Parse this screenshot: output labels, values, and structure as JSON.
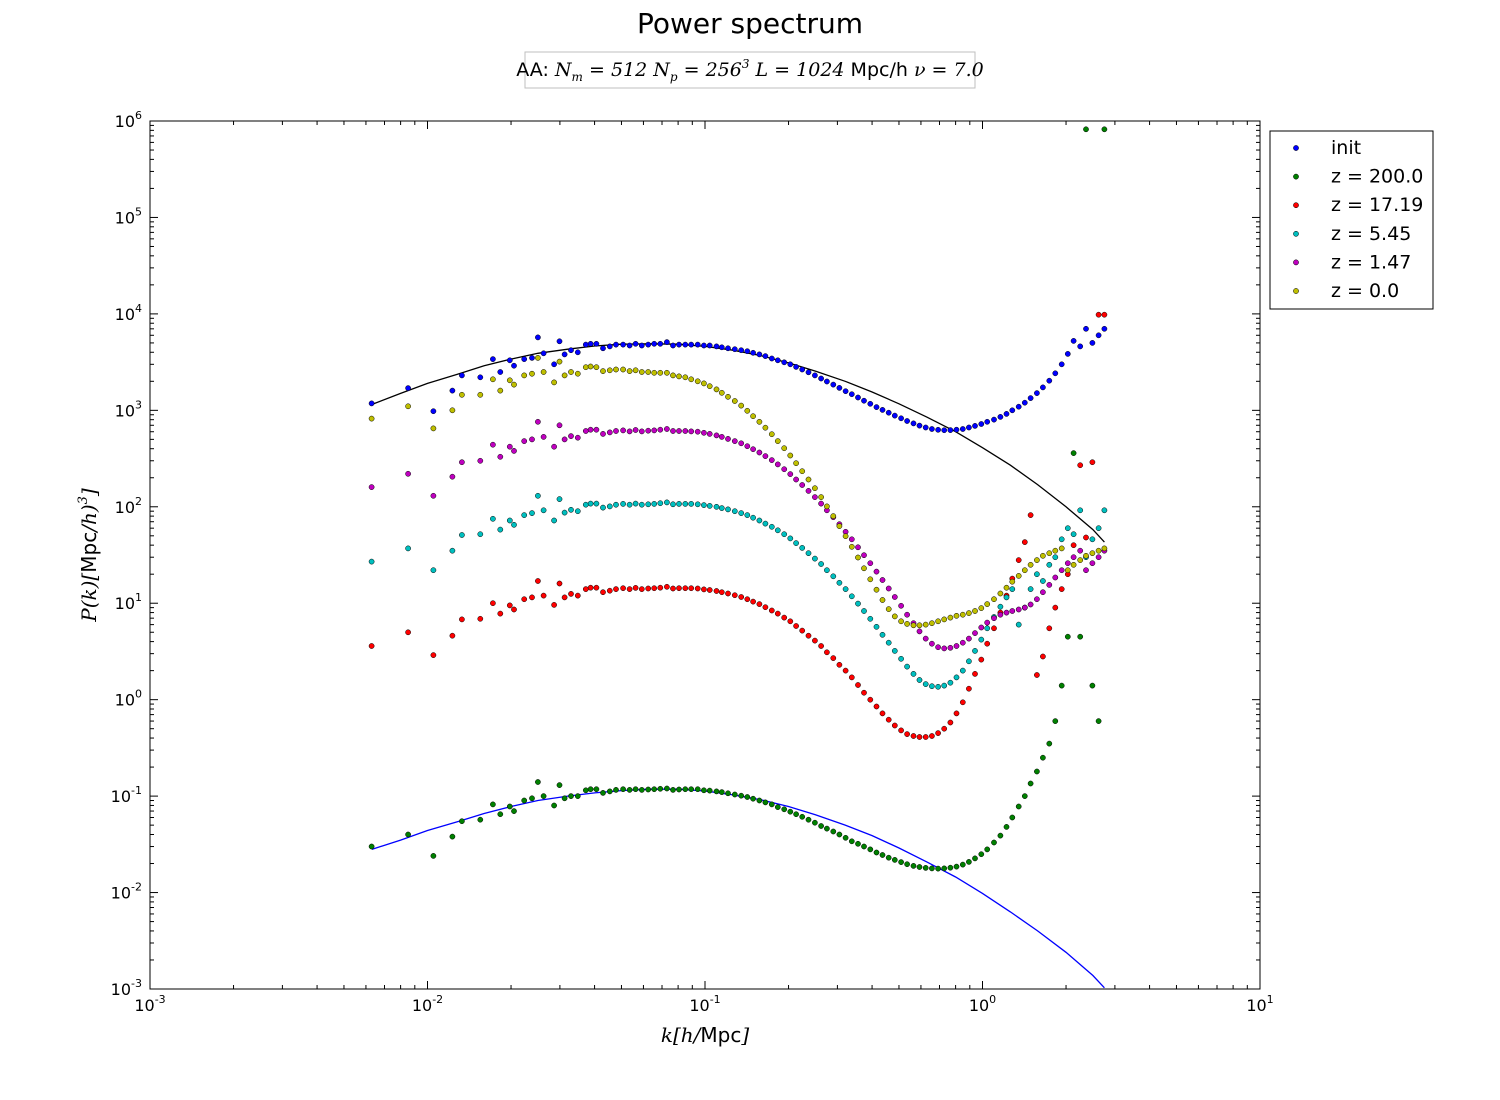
{
  "chart_data": {
    "type": "scatter",
    "title": "Power spectrum",
    "subtitle": {
      "prefix": "AA:",
      "Nm_symbol": "N",
      "Nm_sub": "m",
      "Nm_value": "512",
      "Np_symbol": "N",
      "Np_sub": "p",
      "Np_base": "256",
      "Np_exp": "3",
      "L_symbol": "L",
      "L_value": "1024",
      "L_unit": "Mpc/h",
      "nu_symbol": "ν",
      "nu_value": "7.0"
    },
    "xlabel": {
      "var": "k",
      "open": "[",
      "h": "h",
      "slash": "/",
      "unit": "Mpc",
      "close": "]"
    },
    "ylabel": {
      "var": "P(k)",
      "open": "[",
      "unit": "Mpc",
      "slash": "/",
      "h": "h",
      "close": ")",
      "exp": "3",
      "end": "]"
    },
    "xscale": "log",
    "yscale": "log",
    "xlim": [
      0.001,
      10
    ],
    "ylim": [
      0.001,
      1000000
    ],
    "xticks": [
      {
        "base": "10",
        "exp": "-3"
      },
      {
        "base": "10",
        "exp": "-2"
      },
      {
        "base": "10",
        "exp": "-1"
      },
      {
        "base": "10",
        "exp": "0"
      },
      {
        "base": "10",
        "exp": "1"
      }
    ],
    "yticks": [
      {
        "base": "10",
        "exp": "-3"
      },
      {
        "base": "10",
        "exp": "-2"
      },
      {
        "base": "10",
        "exp": "-1"
      },
      {
        "base": "10",
        "exp": "0"
      },
      {
        "base": "10",
        "exp": "1"
      },
      {
        "base": "10",
        "exp": "2"
      },
      {
        "base": "10",
        "exp": "3"
      },
      {
        "base": "10",
        "exp": "4"
      },
      {
        "base": "10",
        "exp": "5"
      },
      {
        "base": "10",
        "exp": "6"
      }
    ],
    "grid": false,
    "legend_position": "outside-top-right",
    "x": [
      0.00629,
      0.00851,
      0.0105,
      0.0123,
      0.0133,
      0.0155,
      0.0172,
      0.0183,
      0.0198,
      0.0205,
      0.0223,
      0.0238,
      0.025,
      0.0262,
      0.0286,
      0.0299,
      0.0312,
      0.0329,
      0.0348,
      0.0372,
      0.0387,
      0.0406,
      0.0429,
      0.0454,
      0.0478,
      0.0507,
      0.0535,
      0.0562,
      0.0592,
      0.0624,
      0.0656,
      0.069,
      0.0729,
      0.0767,
      0.0806,
      0.0849,
      0.0892,
      0.0941,
      0.0991,
      0.104,
      0.11,
      0.115,
      0.121,
      0.128,
      0.135,
      0.142,
      0.149,
      0.157,
      0.165,
      0.174,
      0.183,
      0.193,
      0.203,
      0.213,
      0.224,
      0.236,
      0.249,
      0.262,
      0.275,
      0.29,
      0.305,
      0.321,
      0.338,
      0.356,
      0.374,
      0.394,
      0.415,
      0.436,
      0.459,
      0.483,
      0.509,
      0.535,
      0.564,
      0.593,
      0.624,
      0.657,
      0.692,
      0.728,
      0.766,
      0.806,
      0.849,
      0.893,
      0.94,
      0.99,
      1.04,
      1.1,
      1.16,
      1.22,
      1.28,
      1.35,
      1.42,
      1.49,
      1.57,
      1.65,
      1.74,
      1.83,
      1.93,
      2.03,
      2.13,
      2.25,
      2.36,
      2.49,
      2.62,
      2.75
    ],
    "series": [
      {
        "name": "init",
        "color": "#0000ff",
        "y": [
          1180,
          1700,
          980,
          1600,
          2300,
          2200,
          3400,
          2500,
          3300,
          2900,
          3400,
          3500,
          5700,
          3900,
          3000,
          5200,
          3800,
          4200,
          4000,
          4800,
          4900,
          4900,
          4400,
          4600,
          4800,
          4800,
          4700,
          4900,
          4700,
          4800,
          4900,
          4900,
          5100,
          4700,
          4800,
          4800,
          4800,
          4800,
          4700,
          4700,
          4600,
          4500,
          4400,
          4300,
          4200,
          4100,
          3950,
          3800,
          3650,
          3450,
          3300,
          3150,
          3000,
          2820,
          2650,
          2480,
          2300,
          2140,
          1990,
          1850,
          1710,
          1580,
          1470,
          1360,
          1260,
          1170,
          1080,
          1010,
          945,
          882,
          826,
          776,
          732,
          695,
          664,
          641,
          628,
          623,
          624,
          630,
          641,
          664,
          689,
          721,
          760,
          801,
          855,
          919,
          1000,
          1090,
          1200,
          1340,
          1510,
          1730,
          2030,
          2420,
          3000,
          3850,
          5250,
          4600,
          7000,
          5000,
          6000,
          7000
        ]
      },
      {
        "name": "z = 200.0",
        "color": "#008000",
        "y": [
          0.03,
          0.04,
          0.024,
          0.038,
          0.055,
          0.057,
          0.082,
          0.065,
          0.078,
          0.07,
          0.09,
          0.095,
          0.14,
          0.1,
          0.08,
          0.13,
          0.095,
          0.1,
          0.1,
          0.115,
          0.118,
          0.118,
          0.108,
          0.112,
          0.116,
          0.118,
          0.116,
          0.118,
          0.116,
          0.117,
          0.118,
          0.119,
          0.12,
          0.116,
          0.117,
          0.118,
          0.118,
          0.118,
          0.115,
          0.114,
          0.112,
          0.11,
          0.107,
          0.104,
          0.101,
          0.098,
          0.094,
          0.09,
          0.086,
          0.082,
          0.077,
          0.073,
          0.069,
          0.065,
          0.061,
          0.057,
          0.053,
          0.049,
          0.046,
          0.043,
          0.04,
          0.037,
          0.034,
          0.032,
          0.03,
          0.028,
          0.026,
          0.0245,
          0.023,
          0.0218,
          0.0207,
          0.0197,
          0.0189,
          0.0184,
          0.018,
          0.0178,
          0.0177,
          0.0178,
          0.0181,
          0.0186,
          0.0195,
          0.0208,
          0.0226,
          0.025,
          0.028,
          0.033,
          0.039,
          0.048,
          0.06,
          0.078,
          0.1,
          0.135,
          0.18,
          0.25,
          0.35,
          0.6,
          1.4,
          4.5,
          360,
          4.5,
          820000,
          1.4,
          0.6,
          820000
        ]
      },
      {
        "name": "z = 17.19",
        "color": "#ff0000",
        "y": [
          3.6,
          5,
          2.9,
          4.6,
          6.8,
          6.9,
          10,
          7.8,
          9.5,
          8.6,
          11,
          11.5,
          17,
          12,
          9.6,
          16,
          11.5,
          12.5,
          12,
          14,
          14.5,
          14.5,
          13,
          13.5,
          14,
          14.3,
          14,
          14.4,
          14,
          14.2,
          14.3,
          14.5,
          14.8,
          14.2,
          14.3,
          14.3,
          14.3,
          14.2,
          13.9,
          13.7,
          13.4,
          13,
          12.6,
          12.1,
          11.6,
          11,
          10.4,
          9.8,
          9.1,
          8.4,
          7.8,
          7.1,
          6.5,
          5.8,
          5.2,
          4.6,
          4.1,
          3.6,
          3.1,
          2.7,
          2.3,
          2,
          1.7,
          1.42,
          1.18,
          1,
          0.85,
          0.72,
          0.62,
          0.54,
          0.48,
          0.44,
          0.42,
          0.41,
          0.41,
          0.42,
          0.45,
          0.5,
          0.58,
          0.72,
          0.94,
          1.3,
          1.85,
          2.6,
          3.8,
          5.5,
          8,
          12,
          18,
          28,
          43,
          82,
          1.8,
          2.8,
          5.5,
          9,
          14,
          20,
          40,
          270,
          48,
          290,
          9800,
          9800
        ]
      },
      {
        "name": "z = 5.45",
        "color": "#00bfbf",
        "y": [
          27,
          37,
          22,
          35,
          51,
          52,
          75,
          58,
          72,
          65,
          82,
          86,
          130,
          92,
          72,
          120,
          87,
          93,
          90,
          105,
          108,
          108,
          98,
          101,
          105,
          107,
          105,
          108,
          105,
          106,
          107,
          109,
          111,
          106,
          107,
          107,
          107,
          106,
          104,
          102,
          100,
          97,
          94,
          90,
          86,
          82,
          77,
          72,
          67,
          62,
          57,
          52,
          47,
          42,
          37.5,
          33,
          29,
          25.5,
          22,
          19,
          16.3,
          14,
          11.8,
          9.9,
          8.3,
          6.9,
          5.7,
          4.7,
          3.9,
          3.2,
          2.65,
          2.2,
          1.85,
          1.6,
          1.45,
          1.38,
          1.36,
          1.4,
          1.5,
          1.7,
          2,
          2.5,
          3.2,
          4.2,
          5.5,
          7.2,
          9.2,
          11.5,
          14,
          6,
          9,
          14,
          20,
          17,
          25,
          30,
          46,
          60,
          52,
          92,
          30,
          46,
          60,
          92
        ]
      },
      {
        "name": "z = 1.47",
        "color": "#bf00bf",
        "y": [
          160,
          220,
          130,
          205,
          290,
          300,
          440,
          330,
          420,
          380,
          480,
          500,
          760,
          530,
          420,
          700,
          500,
          540,
          520,
          610,
          630,
          630,
          570,
          590,
          610,
          620,
          605,
          625,
          605,
          615,
          620,
          630,
          640,
          610,
          610,
          610,
          605,
          600,
          585,
          570,
          550,
          530,
          505,
          480,
          455,
          425,
          395,
          365,
          335,
          305,
          275,
          245,
          218,
          192,
          168,
          146,
          126,
          108,
          92,
          78,
          66,
          55,
          46,
          38,
          31.5,
          26,
          21.3,
          17.4,
          14.2,
          11.6,
          9.4,
          7.6,
          6.2,
          5.1,
          4.3,
          3.8,
          3.5,
          3.4,
          3.45,
          3.6,
          3.9,
          4.3,
          4.9,
          5.6,
          6.3,
          7,
          7.6,
          8,
          8.3,
          8.6,
          9,
          9.7,
          11,
          13,
          15.5,
          18.5,
          22,
          26,
          30,
          35,
          22,
          26,
          30,
          35
        ]
      },
      {
        "name": "z = 0.0",
        "color": "#bfbf00",
        "y": [
          820,
          1100,
          650,
          1000,
          1450,
          1450,
          2100,
          1600,
          2050,
          1850,
          2300,
          2400,
          3500,
          2500,
          1950,
          3200,
          2300,
          2500,
          2400,
          2800,
          2850,
          2800,
          2550,
          2600,
          2650,
          2650,
          2550,
          2600,
          2500,
          2500,
          2450,
          2450,
          2450,
          2300,
          2250,
          2200,
          2100,
          2000,
          1900,
          1780,
          1650,
          1520,
          1380,
          1250,
          1120,
          990,
          870,
          760,
          660,
          565,
          480,
          405,
          340,
          283,
          234,
          192,
          156,
          126,
          101,
          80,
          63,
          49.5,
          38.5,
          29.8,
          23,
          17.7,
          13.8,
          10.8,
          8.7,
          7.3,
          6.5,
          6.1,
          5.9,
          5.9,
          6,
          6.2,
          6.5,
          6.8,
          7.1,
          7.4,
          7.6,
          7.9,
          8.3,
          8.9,
          9.8,
          11,
          12.6,
          14.5,
          16.7,
          19.2,
          22,
          25,
          28,
          31,
          33,
          35,
          37,
          22,
          25,
          28,
          31,
          33,
          35,
          37
        ]
      }
    ],
    "theory_curves": [
      {
        "color": "#000000",
        "x": [
          0.0063,
          0.008,
          0.01,
          0.013,
          0.016,
          0.02,
          0.025,
          0.032,
          0.04,
          0.05,
          0.063,
          0.08,
          0.1,
          0.126,
          0.158,
          0.2,
          0.25,
          0.32,
          0.4,
          0.5,
          0.63,
          0.8,
          1.0,
          1.26,
          1.58,
          2.0,
          2.5,
          2.75
        ],
        "y": [
          1150,
          1500,
          1900,
          2400,
          2900,
          3400,
          3900,
          4300,
          4650,
          4850,
          4900,
          4850,
          4600,
          4200,
          3700,
          3100,
          2550,
          2000,
          1550,
          1170,
          850,
          600,
          410,
          270,
          170,
          100,
          58,
          43
        ]
      },
      {
        "color": "#0000ff",
        "x": [
          0.0063,
          0.008,
          0.01,
          0.013,
          0.016,
          0.02,
          0.025,
          0.032,
          0.04,
          0.05,
          0.063,
          0.08,
          0.1,
          0.126,
          0.158,
          0.2,
          0.25,
          0.32,
          0.4,
          0.5,
          0.63,
          0.8,
          1.0,
          1.26,
          1.58,
          2.0,
          2.5,
          2.75
        ],
        "y": [
          0.028,
          0.035,
          0.044,
          0.055,
          0.066,
          0.078,
          0.09,
          0.1,
          0.108,
          0.114,
          0.118,
          0.118,
          0.113,
          0.103,
          0.092,
          0.078,
          0.064,
          0.05,
          0.039,
          0.029,
          0.0208,
          0.0145,
          0.0098,
          0.0063,
          0.004,
          0.0024,
          0.00138,
          0.00103
        ]
      }
    ]
  }
}
